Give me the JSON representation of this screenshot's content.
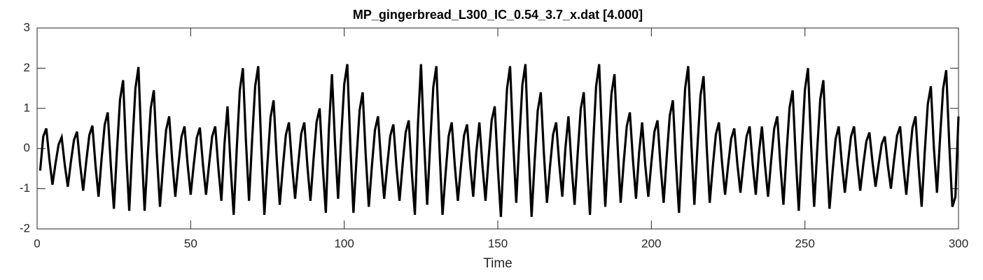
{
  "chart_data": {
    "type": "line",
    "title": "MP_gingerbread_L300_IC_0.54_3.7_x.dat [4.000]",
    "x_label": "Time",
    "color": "#000000",
    "x": [
      1,
      2,
      3,
      4,
      5,
      6,
      7,
      8,
      9,
      10,
      11,
      12,
      13,
      14,
      15,
      16,
      17,
      18,
      19,
      20,
      21,
      22,
      23,
      24,
      25,
      26,
      27,
      28,
      29,
      30,
      31,
      32,
      33,
      34,
      35,
      36,
      37,
      38,
      39,
      40,
      41,
      42,
      43,
      44,
      45,
      46,
      47,
      48,
      49,
      50,
      51,
      52,
      53,
      54,
      55,
      56,
      57,
      58,
      59,
      60,
      61,
      62,
      63,
      64,
      65,
      66,
      67,
      68,
      69,
      70,
      71,
      72,
      73,
      74,
      75,
      76,
      77,
      78,
      79,
      80,
      81,
      82,
      83,
      84,
      85,
      86,
      87,
      88,
      89,
      90,
      91,
      92,
      93,
      94,
      95,
      96,
      97,
      98,
      99,
      100,
      101,
      102,
      103,
      104,
      105,
      106,
      107,
      108,
      109,
      110,
      111,
      112,
      113,
      114,
      115,
      116,
      117,
      118,
      119,
      120,
      121,
      122,
      123,
      124,
      125,
      126,
      127,
      128,
      129,
      130,
      131,
      132,
      133,
      134,
      135,
      136,
      137,
      138,
      139,
      140,
      141,
      142,
      143,
      144,
      145,
      146,
      147,
      148,
      149,
      150,
      151,
      152,
      153,
      154,
      155,
      156,
      157,
      158,
      159,
      160,
      161,
      162,
      163,
      164,
      165,
      166,
      167,
      168,
      169,
      170,
      171,
      172,
      173,
      174,
      175,
      176,
      177,
      178,
      179,
      180,
      181,
      182,
      183,
      184,
      185,
      186,
      187,
      188,
      189,
      190,
      191,
      192,
      193,
      194,
      195,
      196,
      197,
      198,
      199,
      200,
      201,
      202,
      203,
      204,
      205,
      206,
      207,
      208,
      209,
      210,
      211,
      212,
      213,
      214,
      215,
      216,
      217,
      218,
      219,
      220,
      221,
      222,
      223,
      224,
      225,
      226,
      227,
      228,
      229,
      230,
      231,
      232,
      233,
      234,
      235,
      236,
      237,
      238,
      239,
      240,
      241,
      242,
      243,
      244,
      245,
      246,
      247,
      248,
      249,
      250,
      251,
      252,
      253,
      254,
      255,
      256,
      257,
      258,
      259,
      260,
      261,
      262,
      263,
      264,
      265,
      266,
      267,
      268,
      269,
      270,
      271,
      272,
      273,
      274,
      275,
      276,
      277,
      278,
      279,
      280,
      281,
      282,
      283,
      284,
      285,
      286,
      287,
      288,
      289,
      290,
      291,
      292,
      293,
      294,
      295,
      296,
      297,
      298,
      299,
      300
    ],
    "values": [
      -0.55,
      0.3,
      0.5,
      -0.27,
      -0.9,
      -0.37,
      0.1,
      0.28,
      -0.4,
      -0.95,
      -0.33,
      0.21,
      0.42,
      -0.39,
      -1.05,
      -0.32,
      0.33,
      0.57,
      -0.4,
      -1.2,
      -0.25,
      0.59,
      0.9,
      -0.42,
      -1.5,
      -0.06,
      1.22,
      1.7,
      -0.09,
      -1.55,
      0.06,
      1.49,
      2.03,
      0.06,
      -1.55,
      -0.2,
      1.0,
      1.45,
      -0.15,
      -1.45,
      -0.44,
      0.46,
      0.8,
      -0.3,
      -1.2,
      -0.41,
      0.29,
      0.55,
      -0.39,
      -1.15,
      -0.4,
      0.27,
      0.52,
      -0.4,
      -1.15,
      -0.39,
      0.3,
      0.55,
      -0.47,
      -1.3,
      0.11,
      1.05,
      -0.44,
      -1.65,
      -0.01,
      1.45,
      2.0,
      0.18,
      -1.3,
      0.21,
      1.55,
      2.05,
      0.01,
      -1.65,
      -0.37,
      0.77,
      1.2,
      -0.23,
      -1.4,
      -0.48,
      0.34,
      0.65,
      -0.4,
      -1.25,
      -0.4,
      0.37,
      0.65,
      -0.43,
      -1.3,
      -0.27,
      0.66,
      1.0,
      -0.43,
      -1.6,
      0.47,
      1.85,
      0.14,
      -1.25,
      0.26,
      1.6,
      2.1,
      0.06,
      -1.6,
      -0.25,
      0.95,
      1.4,
      -0.17,
      -1.45,
      -0.44,
      0.46,
      0.8,
      -0.33,
      -1.25,
      -0.42,
      0.32,
      0.6,
      -0.45,
      -1.3,
      -0.4,
      0.4,
      0.7,
      -0.59,
      -1.65,
      0.6,
      2.1,
      0.17,
      -1.4,
      0.15,
      1.53,
      2.05,
      0.01,
      -1.65,
      -0.62,
      0.31,
      0.65,
      -0.42,
      -1.3,
      -0.45,
      0.32,
      0.6,
      -0.4,
      -1.2,
      -0.09,
      0.65,
      -0.42,
      -1.3,
      -0.24,
      0.7,
      1.05,
      -0.46,
      -1.7,
      -0.01,
      1.49,
      2.05,
      0.18,
      -1.35,
      0.2,
      1.58,
      2.1,
      0.01,
      -1.7,
      -0.31,
      0.94,
      1.4,
      -0.11,
      -1.35,
      -0.45,
      0.35,
      0.65,
      -0.38,
      -1.2,
      0.0,
      0.8,
      -0.41,
      -1.4,
      -0.14,
      0.98,
      1.4,
      -0.28,
      -1.65,
      0.04,
      1.54,
      2.1,
      0.15,
      -1.45,
      0.04,
      1.36,
      1.85,
      0.09,
      -1.35,
      -0.34,
      0.56,
      0.9,
      -0.28,
      -1.25,
      -0.11,
      0.65,
      -0.4,
      -1.2,
      -0.35,
      0.42,
      0.7,
      -0.43,
      -1.35,
      -0.2,
      0.82,
      1.2,
      -0.34,
      -1.6,
      0.04,
      1.5,
      2.05,
      0.15,
      -1.4,
      0.04,
      1.32,
      1.8,
      0.07,
      -1.35,
      -0.45,
      0.35,
      0.65,
      -0.34,
      -1.15,
      -0.41,
      0.25,
      0.5,
      -0.38,
      -1.1,
      -0.36,
      0.3,
      0.55,
      -0.39,
      -1.15,
      -0.13,
      0.55,
      -0.41,
      -1.2,
      -0.3,
      0.5,
      0.8,
      -0.41,
      -1.4,
      -0.12,
      1.02,
      1.45,
      -0.2,
      -1.55,
      0.05,
      1.47,
      2.0,
      0.1,
      -1.45,
      -0.03,
      1.23,
      1.7,
      -0.06,
      -1.5,
      -0.58,
      0.24,
      0.55,
      -0.36,
      -1.1,
      -0.36,
      0.3,
      0.55,
      -0.33,
      -1.05,
      -0.4,
      0.18,
      0.4,
      -0.34,
      -0.95,
      -0.39,
      0.11,
      0.3,
      -0.42,
      -1.0,
      -0.3,
      0.32,
      0.55,
      -0.39,
      -1.15,
      -0.27,
      0.51,
      0.8,
      -0.44,
      -1.45,
      -0.1,
      1.1,
      1.55,
      0.0,
      -1.1,
      0.27,
      1.49,
      1.95,
      0.1,
      -1.45,
      -1.2,
      0.8
    ],
    "xlim": [
      0,
      300
    ],
    "xticks": [
      0,
      50,
      100,
      150,
      200,
      250,
      300
    ],
    "ylim": [
      -2,
      3
    ],
    "yticks": [
      -2,
      -1,
      0,
      1,
      2,
      3
    ],
    "grid": false
  }
}
